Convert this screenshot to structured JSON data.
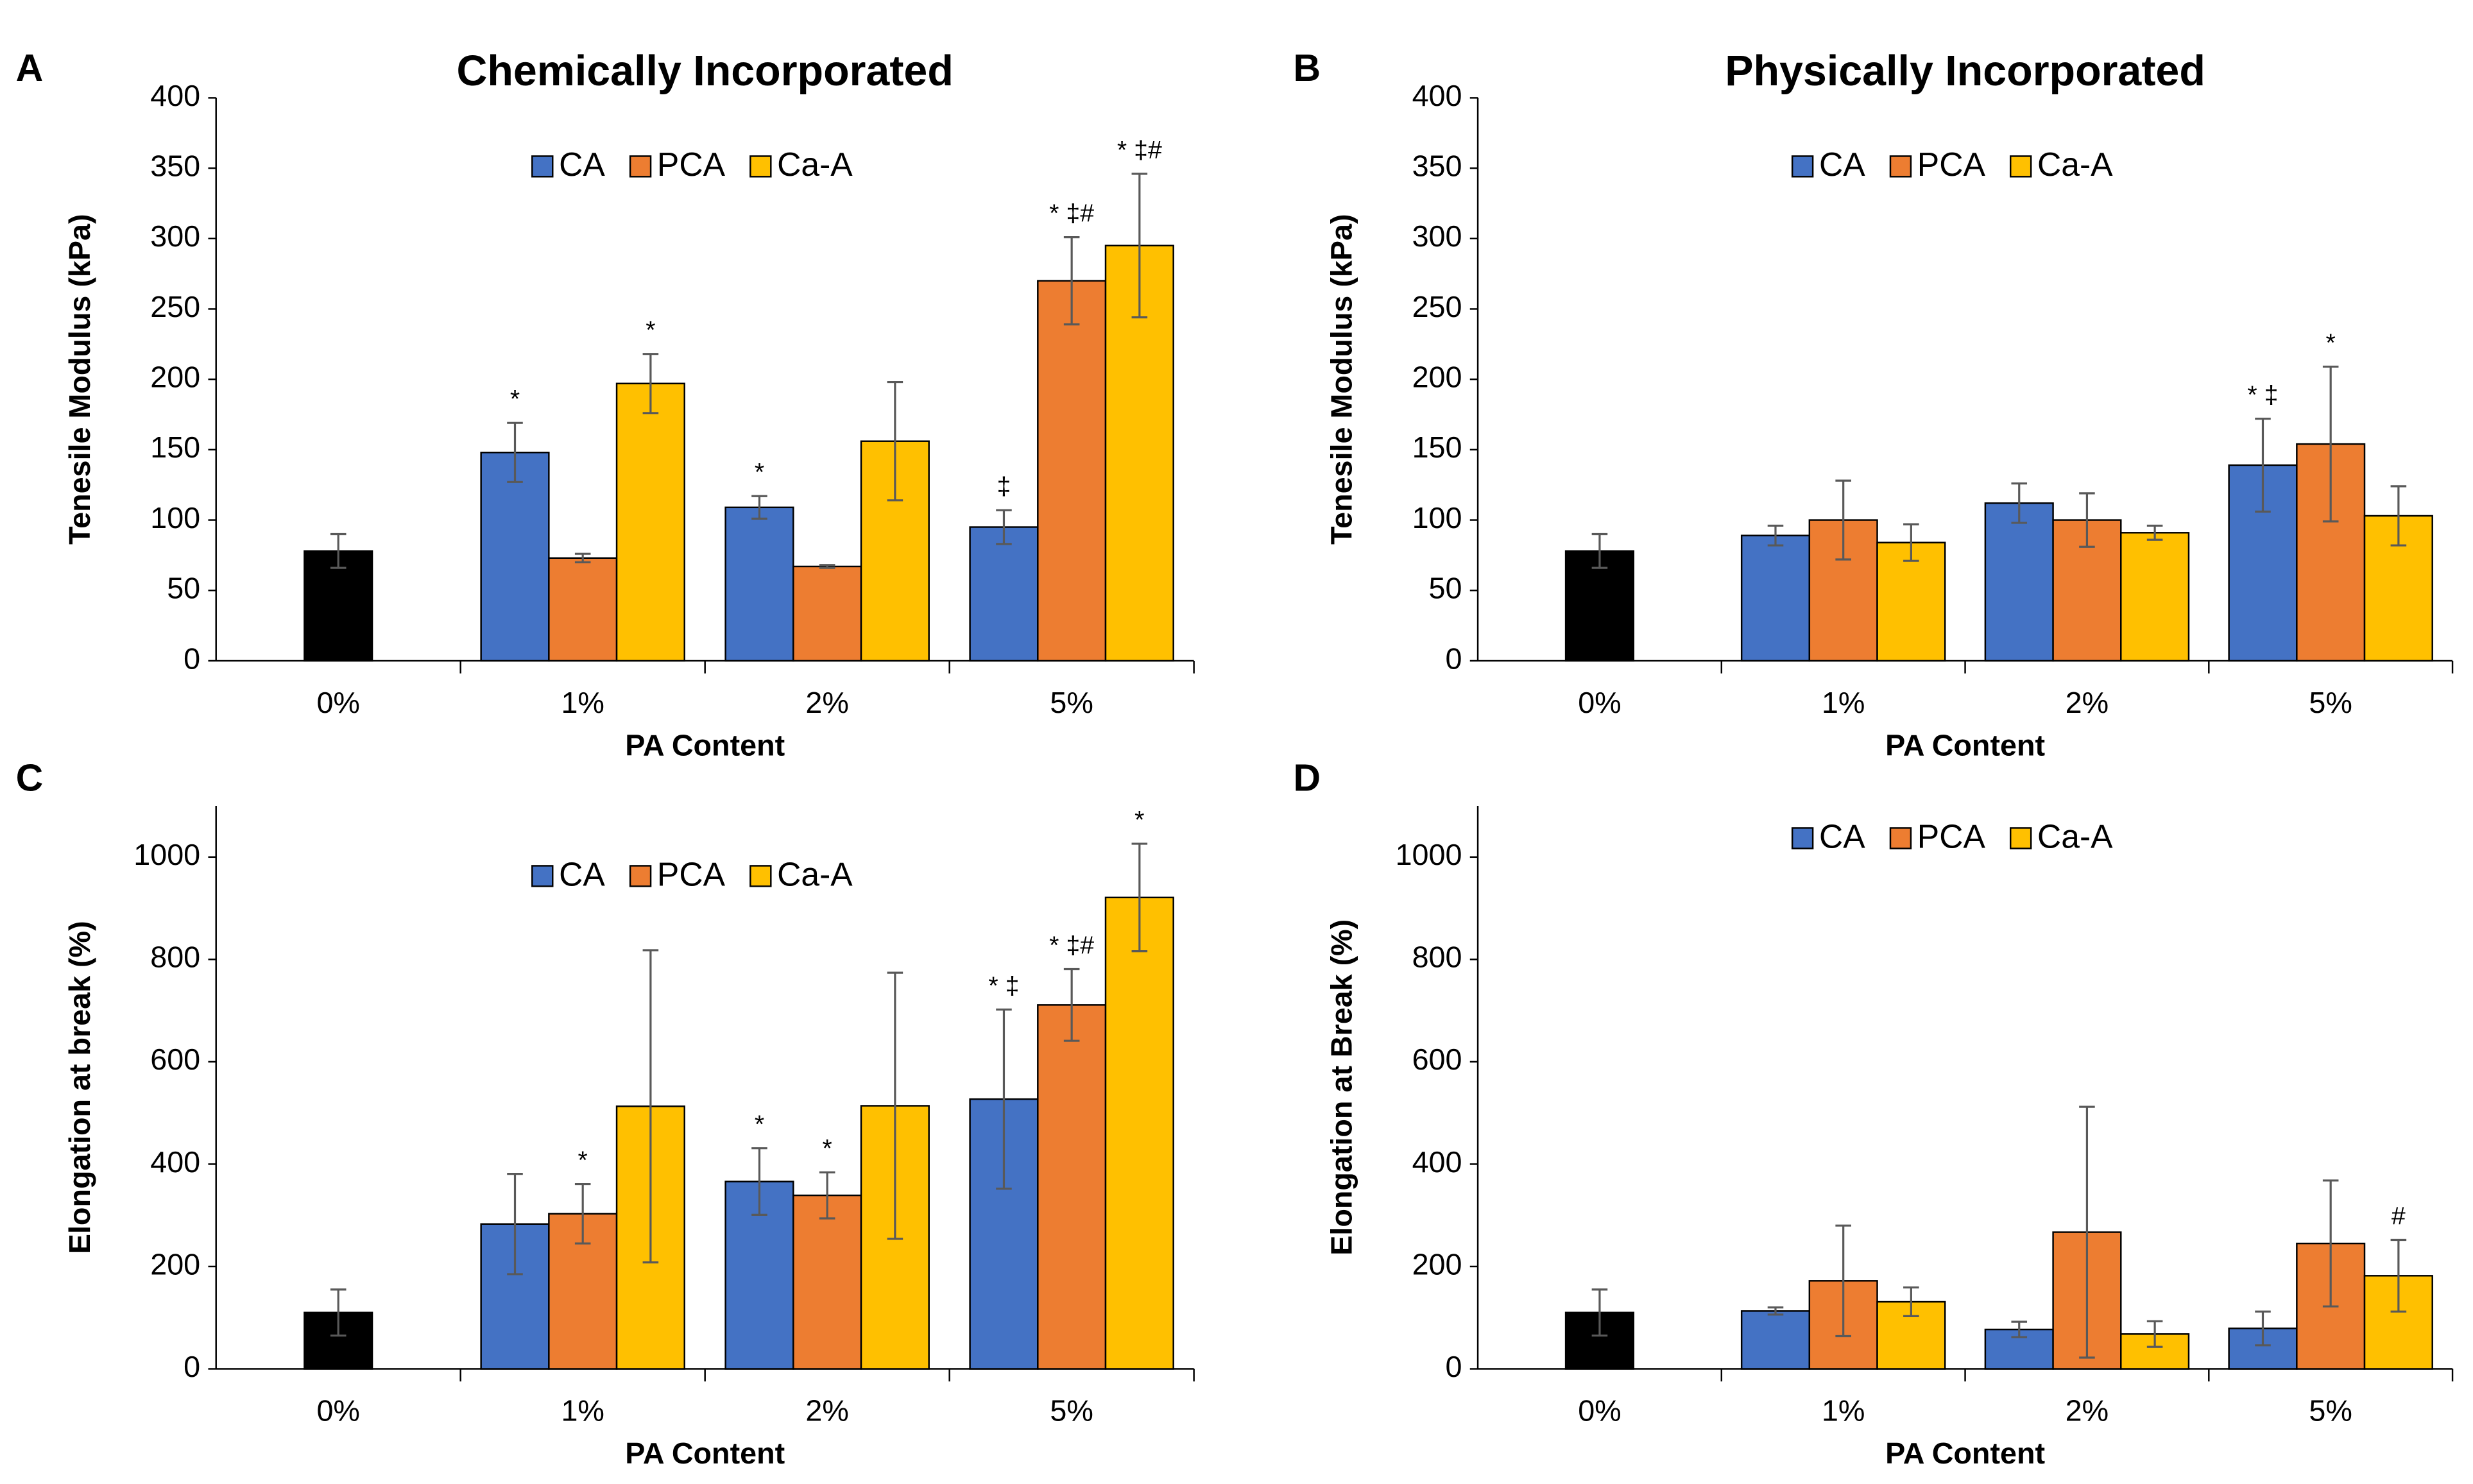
{
  "chart_data": [
    {
      "type": "bar",
      "panel": "A",
      "title": "Chemically Incorporated",
      "ylabel": "Tenesile Modulus (kPa)",
      "xlabel": "PA Content",
      "categories": [
        "0%",
        "1%",
        "2%",
        "5%"
      ],
      "ylim": [
        0,
        400
      ],
      "yticks": [
        0,
        50,
        100,
        150,
        200,
        250,
        300,
        350,
        400
      ],
      "legend": "top",
      "series": [
        {
          "color": "#000000",
          "values": [
            78,
            null,
            null,
            null
          ],
          "errors": [
            12,
            null,
            null,
            null
          ]
        },
        {
          "name": "CA",
          "color": "#4472c4",
          "values": [
            null,
            148,
            109,
            95
          ],
          "errors": [
            null,
            21,
            8,
            12
          ],
          "annotations": [
            null,
            "*",
            "*",
            "‡"
          ]
        },
        {
          "name": "PCA",
          "color": "#ed7d31",
          "values": [
            null,
            73,
            67,
            270
          ],
          "errors": [
            null,
            3,
            1,
            31
          ],
          "annotations": [
            null,
            null,
            null,
            "* ‡#"
          ]
        },
        {
          "name": "Ca-A",
          "color": "#ffc000",
          "values": [
            null,
            197,
            156,
            295
          ],
          "errors": [
            null,
            21,
            42,
            51
          ],
          "annotations": [
            null,
            "*",
            null,
            "* ‡#"
          ]
        }
      ]
    },
    {
      "type": "bar",
      "panel": "B",
      "title": "Physically Incorporated",
      "ylabel": "Tenesile Modulus (kPa)",
      "xlabel": "PA Content",
      "categories": [
        "0%",
        "1%",
        "2%",
        "5%"
      ],
      "ylim": [
        0,
        400
      ],
      "yticks": [
        0,
        50,
        100,
        150,
        200,
        250,
        300,
        350,
        400
      ],
      "legend": "top",
      "series": [
        {
          "color": "#000000",
          "values": [
            78,
            null,
            null,
            null
          ],
          "errors": [
            12,
            null,
            null,
            null
          ]
        },
        {
          "name": "CA",
          "color": "#4472c4",
          "values": [
            null,
            89,
            112,
            139
          ],
          "errors": [
            null,
            7,
            14,
            33
          ],
          "annotations": [
            null,
            null,
            null,
            "* ‡"
          ]
        },
        {
          "name": "PCA",
          "color": "#ed7d31",
          "values": [
            null,
            100,
            100,
            154
          ],
          "errors": [
            null,
            28,
            19,
            55
          ],
          "annotations": [
            null,
            null,
            null,
            "*"
          ]
        },
        {
          "name": "Ca-A",
          "color": "#ffc000",
          "values": [
            null,
            84,
            91,
            103
          ],
          "errors": [
            null,
            13,
            5,
            21
          ]
        }
      ]
    },
    {
      "type": "bar",
      "panel": "C",
      "ylabel": "Elongation at break (%)",
      "xlabel": "PA Content",
      "categories": [
        "0%",
        "1%",
        "2%",
        "5%"
      ],
      "ylim": [
        0,
        1100
      ],
      "yticks": [
        0,
        200,
        400,
        600,
        800,
        1000
      ],
      "legend": "top",
      "series": [
        {
          "color": "#000000",
          "values": [
            110,
            null,
            null,
            null
          ],
          "errors": [
            45,
            null,
            null,
            null
          ]
        },
        {
          "name": "CA",
          "color": "#4472c4",
          "values": [
            null,
            283,
            366,
            527
          ],
          "errors": [
            null,
            98,
            65,
            175
          ],
          "annotations": [
            null,
            null,
            "*",
            "* ‡"
          ]
        },
        {
          "name": "PCA",
          "color": "#ed7d31",
          "values": [
            null,
            303,
            339,
            711
          ],
          "errors": [
            null,
            58,
            45,
            70
          ],
          "annotations": [
            null,
            "*",
            "*",
            "* ‡#"
          ]
        },
        {
          "name": "Ca-A",
          "color": "#ffc000",
          "values": [
            null,
            513,
            514,
            921
          ],
          "errors": [
            null,
            305,
            260,
            105
          ],
          "annotations": [
            null,
            null,
            null,
            "*"
          ]
        }
      ]
    },
    {
      "type": "bar",
      "panel": "D",
      "ylabel": "Elongation at Break (%)",
      "xlabel": "PA Content",
      "categories": [
        "0%",
        "1%",
        "2%",
        "5%"
      ],
      "ylim": [
        0,
        1100
      ],
      "yticks": [
        0,
        200,
        400,
        600,
        800,
        1000
      ],
      "legend": "top",
      "series": [
        {
          "color": "#000000",
          "values": [
            110,
            null,
            null,
            null
          ],
          "errors": [
            45,
            null,
            null,
            null
          ]
        },
        {
          "name": "CA",
          "color": "#4472c4",
          "values": [
            null,
            113,
            77,
            79
          ],
          "errors": [
            null,
            7,
            15,
            33
          ]
        },
        {
          "name": "PCA",
          "color": "#ed7d31",
          "values": [
            null,
            172,
            267,
            245
          ],
          "errors": [
            null,
            108,
            245,
            123
          ]
        },
        {
          "name": "Ca-A",
          "color": "#ffc000",
          "values": [
            null,
            131,
            68,
            182
          ],
          "errors": [
            null,
            28,
            25,
            70
          ],
          "annotations": [
            null,
            null,
            null,
            "#"
          ]
        }
      ]
    }
  ]
}
